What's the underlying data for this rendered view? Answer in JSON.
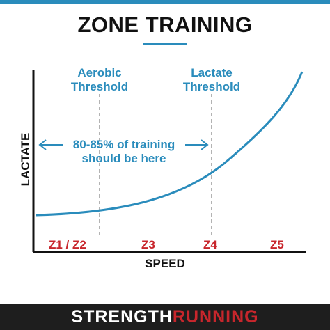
{
  "title": "ZONE TRAINING",
  "thresholds": {
    "aerobic": [
      "Aerobic",
      "Threshold"
    ],
    "lactate": [
      "Lactate",
      "Threshold"
    ]
  },
  "annotation": [
    "80-85% of training",
    "should be here"
  ],
  "axes": {
    "y": "LACTATE",
    "x": "SPEED"
  },
  "zones": [
    "Z1 / Z2",
    "Z3",
    "Z4",
    "Z5"
  ],
  "footer": {
    "part1": "STRENGTH",
    "part2": "RUNNING"
  },
  "colors": {
    "accent_blue": "#2a8cbc",
    "zone_red": "#c8262c",
    "dark": "#111111",
    "footer_bg": "#1e1e1e",
    "dashed_gray": "#9a9a9a"
  }
}
